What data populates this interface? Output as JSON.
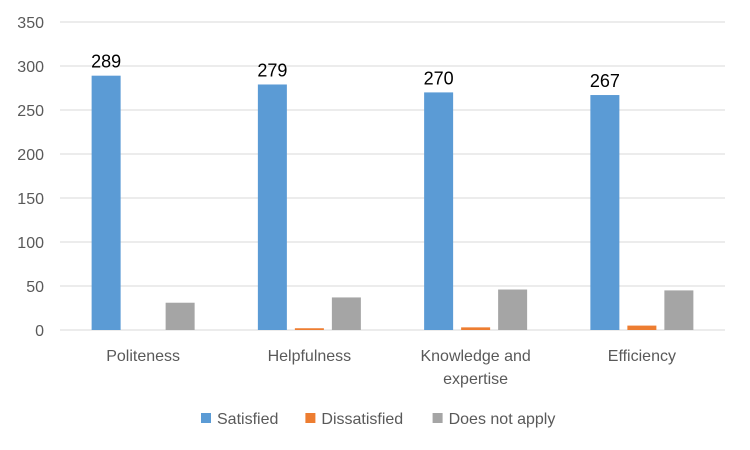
{
  "chart_data": {
    "type": "bar",
    "title": "",
    "xlabel": "",
    "ylabel": "",
    "categories": [
      "Politeness",
      "Helpfulness",
      "Knowledge and expertise",
      "Efficiency"
    ],
    "category_lines": [
      [
        "Politeness"
      ],
      [
        "Helpfulness"
      ],
      [
        "Knowledge and",
        "expertise"
      ],
      [
        "Efficiency"
      ]
    ],
    "ylim": [
      0,
      350
    ],
    "yticks": [
      0,
      50,
      100,
      150,
      200,
      250,
      300,
      350
    ],
    "grid": true,
    "legend_position": "bottom",
    "series": [
      {
        "name": "Satisfied",
        "color": "#5B9BD5",
        "values": [
          289,
          279,
          270,
          267
        ],
        "show_labels": true
      },
      {
        "name": "Dissatisfied",
        "color": "#ED7D31",
        "values": [
          0,
          2,
          3,
          5
        ],
        "show_labels": false
      },
      {
        "name": "Does not apply",
        "color": "#A5A5A5",
        "values": [
          31,
          37,
          46,
          45
        ],
        "show_labels": false
      }
    ]
  }
}
